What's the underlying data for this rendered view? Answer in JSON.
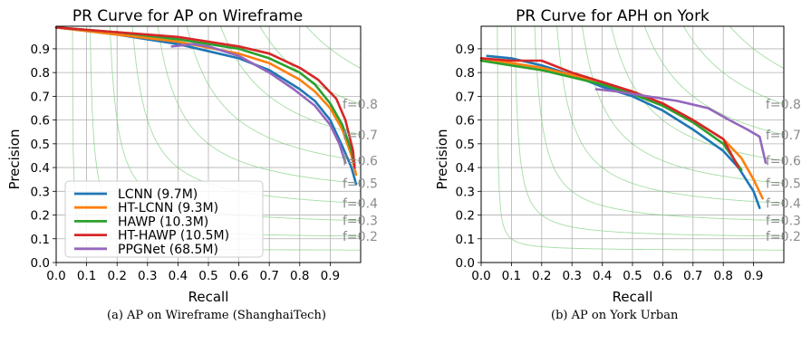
{
  "chart_data": [
    {
      "type": "line",
      "title": "PR Curve for AP on Wireframe",
      "xlabel": "Recall",
      "ylabel": "Precision",
      "xlim": [
        0,
        1
      ],
      "ylim": [
        0,
        1
      ],
      "xticks": [
        "0.0",
        "0.1",
        "0.2",
        "0.3",
        "0.4",
        "0.5",
        "0.6",
        "0.7",
        "0.8",
        "0.9"
      ],
      "yticks": [
        "0.0",
        "0.1",
        "0.2",
        "0.3",
        "0.4",
        "0.5",
        "0.6",
        "0.7",
        "0.8",
        "0.9"
      ],
      "grid": true,
      "legend_position": "lower-left",
      "iso_f_labels": [
        {
          "text": "f=0.2",
          "f": 0.2
        },
        {
          "text": "f=0.3",
          "f": 0.3
        },
        {
          "text": "f=0.4",
          "f": 0.4
        },
        {
          "text": "f=0.5",
          "f": 0.5
        },
        {
          "text": "f=0.6",
          "f": 0.6
        },
        {
          "text": "f=0.7",
          "f": 0.7
        },
        {
          "text": "f=0.8",
          "f": 0.8
        }
      ],
      "series": [
        {
          "name": "LCNN (9.7M)",
          "color": "#1f77b4",
          "x": [
            0,
            0.2,
            0.4,
            0.6,
            0.7,
            0.8,
            0.85,
            0.9,
            0.94,
            0.97,
            0.985
          ],
          "y": [
            0.99,
            0.96,
            0.92,
            0.86,
            0.81,
            0.73,
            0.68,
            0.6,
            0.49,
            0.4,
            0.33
          ]
        },
        {
          "name": "HT-LCNN (9.3M)",
          "color": "#ff7f0e",
          "x": [
            0,
            0.2,
            0.4,
            0.6,
            0.7,
            0.8,
            0.85,
            0.9,
            0.94,
            0.97,
            0.985
          ],
          "y": [
            0.99,
            0.96,
            0.93,
            0.88,
            0.84,
            0.77,
            0.72,
            0.65,
            0.56,
            0.45,
            0.37
          ]
        },
        {
          "name": "HAWP (10.3M)",
          "color": "#2ca02c",
          "x": [
            0,
            0.2,
            0.4,
            0.6,
            0.7,
            0.8,
            0.85,
            0.9,
            0.94,
            0.97,
            0.98
          ],
          "y": [
            0.99,
            0.97,
            0.94,
            0.9,
            0.86,
            0.8,
            0.75,
            0.67,
            0.58,
            0.47,
            0.41
          ]
        },
        {
          "name": "HT-HAWP (10.5M)",
          "color": "#d62728",
          "x": [
            0,
            0.2,
            0.4,
            0.6,
            0.7,
            0.8,
            0.86,
            0.92,
            0.95,
            0.975,
            0.98
          ],
          "y": [
            0.99,
            0.97,
            0.95,
            0.91,
            0.88,
            0.82,
            0.77,
            0.69,
            0.6,
            0.47,
            0.4
          ]
        },
        {
          "name": "PPGNet (68.5M)",
          "color": "#9467bd",
          "x": [
            0.38,
            0.45,
            0.5,
            0.6,
            0.7,
            0.78,
            0.85,
            0.9,
            0.93,
            0.95
          ],
          "y": [
            0.91,
            0.92,
            0.91,
            0.87,
            0.8,
            0.73,
            0.66,
            0.58,
            0.5,
            0.42
          ]
        }
      ]
    },
    {
      "type": "line",
      "title": "PR Curve for APH on York",
      "xlabel": "Recall",
      "ylabel": "Precision",
      "xlim": [
        0,
        1
      ],
      "ylim": [
        0,
        1
      ],
      "xticks": [
        "0.0",
        "0.1",
        "0.2",
        "0.3",
        "0.4",
        "0.5",
        "0.6",
        "0.7",
        "0.8",
        "0.9"
      ],
      "yticks": [
        "0.0",
        "0.1",
        "0.2",
        "0.3",
        "0.4",
        "0.5",
        "0.6",
        "0.7",
        "0.8",
        "0.9"
      ],
      "grid": true,
      "iso_f_labels": [
        {
          "text": "f=0.2",
          "f": 0.2
        },
        {
          "text": "f=0.3",
          "f": 0.3
        },
        {
          "text": "f=0.4",
          "f": 0.4
        },
        {
          "text": "f=0.5",
          "f": 0.5
        },
        {
          "text": "f=0.6",
          "f": 0.6
        },
        {
          "text": "f=0.7",
          "f": 0.7
        },
        {
          "text": "f=0.8",
          "f": 0.8
        }
      ],
      "series": [
        {
          "name": "LCNN (9.7M)",
          "color": "#1f77b4",
          "x": [
            0.02,
            0.1,
            0.2,
            0.3,
            0.4,
            0.5,
            0.6,
            0.7,
            0.8,
            0.85,
            0.9,
            0.92
          ],
          "y": [
            0.87,
            0.86,
            0.83,
            0.79,
            0.74,
            0.7,
            0.64,
            0.56,
            0.47,
            0.4,
            0.3,
            0.23
          ]
        },
        {
          "name": "HT-LCNN (9.3M)",
          "color": "#ff7f0e",
          "x": [
            0,
            0.1,
            0.2,
            0.3,
            0.4,
            0.5,
            0.6,
            0.7,
            0.8,
            0.86,
            0.9,
            0.93
          ],
          "y": [
            0.86,
            0.84,
            0.82,
            0.79,
            0.76,
            0.72,
            0.67,
            0.6,
            0.52,
            0.44,
            0.35,
            0.27
          ]
        },
        {
          "name": "HAWP (10.3M)",
          "color": "#2ca02c",
          "x": [
            0,
            0.1,
            0.2,
            0.3,
            0.4,
            0.5,
            0.6,
            0.7,
            0.8,
            0.86
          ],
          "y": [
            0.85,
            0.83,
            0.81,
            0.78,
            0.75,
            0.71,
            0.66,
            0.59,
            0.5,
            0.39
          ]
        },
        {
          "name": "HT-HAWP (10.5M)",
          "color": "#d62728",
          "x": [
            0,
            0.1,
            0.2,
            0.3,
            0.4,
            0.5,
            0.6,
            0.7,
            0.8,
            0.85
          ],
          "y": [
            0.86,
            0.85,
            0.85,
            0.8,
            0.76,
            0.72,
            0.67,
            0.6,
            0.52,
            0.4
          ]
        },
        {
          "name": "PPGNet (68.5M)",
          "color": "#9467bd",
          "x": [
            0.38,
            0.45,
            0.55,
            0.65,
            0.75,
            0.82,
            0.88,
            0.92,
            0.94
          ],
          "y": [
            0.73,
            0.72,
            0.7,
            0.68,
            0.65,
            0.6,
            0.56,
            0.53,
            0.42
          ]
        }
      ]
    }
  ],
  "captions": {
    "left": "(a) AP on Wireframe (ShanghaiTech)",
    "right": "(b) AP on York Urban"
  }
}
